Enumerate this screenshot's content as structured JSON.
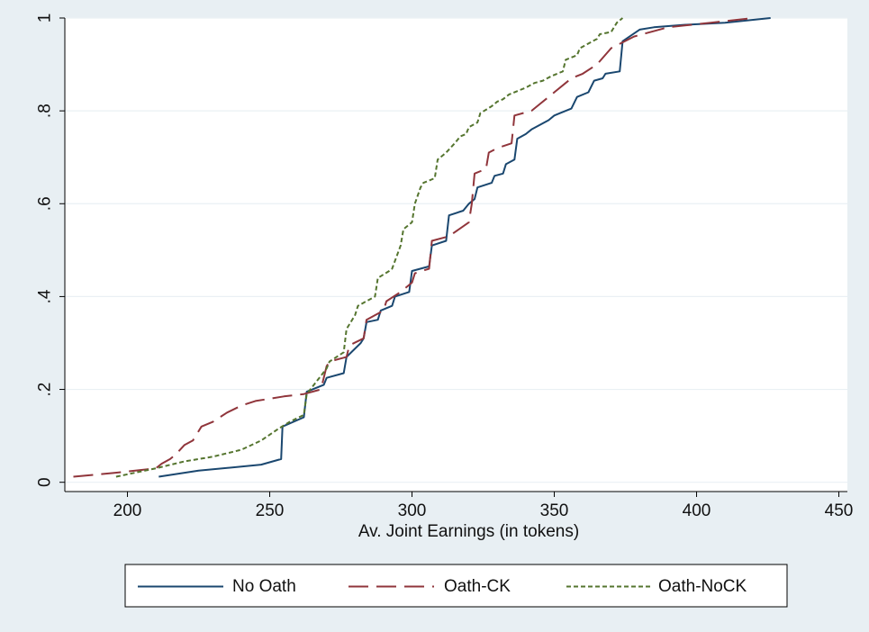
{
  "chart_data": {
    "type": "line",
    "title": "",
    "xlabel": "Av. Joint Earnings (in tokens)",
    "ylabel": "",
    "xlim": [
      178,
      453
    ],
    "ylim": [
      -0.02,
      1.0
    ],
    "x_ticks": [
      200,
      250,
      300,
      350,
      400,
      450
    ],
    "x_tick_labels": [
      "200",
      "250",
      "300",
      "350",
      "400",
      "450"
    ],
    "y_ticks": [
      0,
      0.2,
      0.4,
      0.6,
      0.8,
      1
    ],
    "y_tick_labels": [
      "0",
      ".2",
      ".4",
      ".6",
      ".8",
      "1"
    ],
    "grid": "horizontal",
    "legend_position": "bottom",
    "series": [
      {
        "name": "No Oath",
        "color": "#1a476f",
        "dash": "solid",
        "x": [
          211,
          225,
          247,
          254,
          254.5,
          262,
          263,
          269,
          270,
          276,
          277,
          282,
          283,
          284,
          288,
          289,
          293,
          294,
          299,
          300,
          306,
          307,
          312,
          313,
          318,
          320,
          322,
          323,
          328,
          329,
          332,
          333,
          336,
          337,
          340,
          342,
          345,
          348,
          350,
          352,
          356,
          358,
          362,
          364,
          367,
          368,
          373,
          374,
          380,
          385,
          395,
          410,
          426
        ],
        "y": [
          0.012,
          0.025,
          0.038,
          0.05,
          0.12,
          0.14,
          0.195,
          0.21,
          0.225,
          0.235,
          0.27,
          0.3,
          0.31,
          0.345,
          0.35,
          0.37,
          0.38,
          0.4,
          0.41,
          0.455,
          0.465,
          0.51,
          0.52,
          0.575,
          0.585,
          0.6,
          0.61,
          0.635,
          0.645,
          0.66,
          0.665,
          0.685,
          0.695,
          0.74,
          0.75,
          0.76,
          0.77,
          0.78,
          0.79,
          0.795,
          0.805,
          0.83,
          0.84,
          0.865,
          0.87,
          0.88,
          0.885,
          0.95,
          0.975,
          0.98,
          0.985,
          0.99,
          1.0
        ]
      },
      {
        "name": "Oath-CK",
        "color": "#90353b",
        "dash": "long",
        "x": [
          181,
          195,
          210,
          212,
          215,
          217,
          220,
          223,
          226,
          230,
          235,
          240,
          245,
          250,
          255,
          262,
          268,
          270,
          271,
          277,
          278,
          283,
          284,
          290,
          291,
          296,
          300,
          301,
          306,
          307,
          313,
          320,
          321,
          322,
          326,
          327,
          330,
          335,
          336,
          342,
          345,
          348,
          350,
          356,
          360,
          365,
          370,
          378,
          390,
          405,
          420
        ],
        "y": [
          0.012,
          0.02,
          0.03,
          0.04,
          0.05,
          0.06,
          0.08,
          0.09,
          0.12,
          0.13,
          0.15,
          0.165,
          0.175,
          0.18,
          0.185,
          0.19,
          0.2,
          0.25,
          0.26,
          0.27,
          0.295,
          0.31,
          0.35,
          0.37,
          0.39,
          0.41,
          0.43,
          0.45,
          0.46,
          0.52,
          0.53,
          0.56,
          0.6,
          0.665,
          0.675,
          0.71,
          0.72,
          0.73,
          0.79,
          0.8,
          0.815,
          0.83,
          0.84,
          0.87,
          0.88,
          0.9,
          0.935,
          0.96,
          0.98,
          0.99,
          1.0
        ]
      },
      {
        "name": "Oath-NoCK",
        "color": "#55752f",
        "dash": "short",
        "x": [
          196,
          210,
          220,
          230,
          240,
          247,
          253,
          257,
          262,
          263,
          270,
          271,
          276,
          277,
          280,
          281,
          287,
          288,
          292,
          293,
          296,
          297,
          300,
          301,
          303,
          304,
          308,
          309,
          311,
          312,
          315,
          317,
          319,
          320,
          323,
          324,
          328,
          330,
          332,
          334,
          338,
          340,
          343,
          346,
          349,
          351,
          353,
          354,
          358,
          359,
          365,
          366,
          370,
          372,
          374
        ],
        "y": [
          0.012,
          0.03,
          0.045,
          0.055,
          0.07,
          0.09,
          0.115,
          0.13,
          0.145,
          0.19,
          0.245,
          0.26,
          0.28,
          0.33,
          0.36,
          0.38,
          0.4,
          0.44,
          0.455,
          0.46,
          0.51,
          0.545,
          0.56,
          0.6,
          0.635,
          0.645,
          0.655,
          0.695,
          0.705,
          0.71,
          0.73,
          0.745,
          0.75,
          0.765,
          0.775,
          0.795,
          0.81,
          0.82,
          0.825,
          0.835,
          0.845,
          0.85,
          0.86,
          0.865,
          0.875,
          0.88,
          0.885,
          0.91,
          0.92,
          0.935,
          0.955,
          0.965,
          0.97,
          0.99,
          1.0
        ]
      }
    ]
  }
}
